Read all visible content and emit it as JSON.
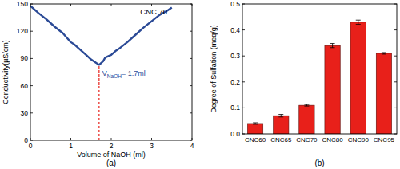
{
  "chart_data": [
    {
      "type": "line",
      "title": "CNC 70",
      "panel_label": "(a)",
      "x_label": "Volume of NaOH (ml)",
      "y_label": "Conductivity(µS/cm)",
      "x": [
        0,
        0.2,
        0.4,
        0.6,
        0.8,
        0.9,
        1.0,
        1.1,
        1.2,
        1.3,
        1.4,
        1.5,
        1.6,
        1.7,
        1.8,
        1.85,
        1.9,
        2.0,
        2.1,
        2.2,
        2.4,
        2.6,
        2.8,
        3.0,
        3.2,
        3.4,
        3.5
      ],
      "values": [
        148,
        140,
        133,
        125,
        118,
        113,
        108,
        105,
        101,
        97,
        93,
        89,
        86,
        83,
        87,
        91,
        92,
        94,
        98,
        101,
        108,
        116,
        124,
        131,
        138,
        143,
        146
      ],
      "color": "#2b4a96",
      "xlim": [
        0,
        4
      ],
      "xticks": [
        0,
        1,
        2,
        3,
        4
      ],
      "ylim": [
        0,
        150
      ],
      "yticks": [
        0,
        30,
        60,
        90,
        120,
        150
      ],
      "grid": false,
      "annotation": {
        "x": 1.7,
        "text": [
          "V",
          "NaOH",
          "= 1.7ml"
        ]
      }
    },
    {
      "type": "bar",
      "panel_label": "(b)",
      "y_label": "Degree of Sulfation (meq/g)",
      "categories": [
        "CNC60",
        "CNC65",
        "CNC70",
        "CNC80",
        "CNC90",
        "CNC95"
      ],
      "values": [
        0.04,
        0.07,
        0.11,
        0.34,
        0.43,
        0.31
      ],
      "errors": [
        0.003,
        0.005,
        0.003,
        0.008,
        0.008,
        0.003
      ],
      "color": "#e8201a",
      "ylim": [
        0,
        0.5
      ],
      "yticks": [
        {
          "value": 0,
          "label": "0.0"
        },
        0.1,
        0.2,
        0.3,
        0.4,
        0.5
      ],
      "grid": false
    }
  ]
}
